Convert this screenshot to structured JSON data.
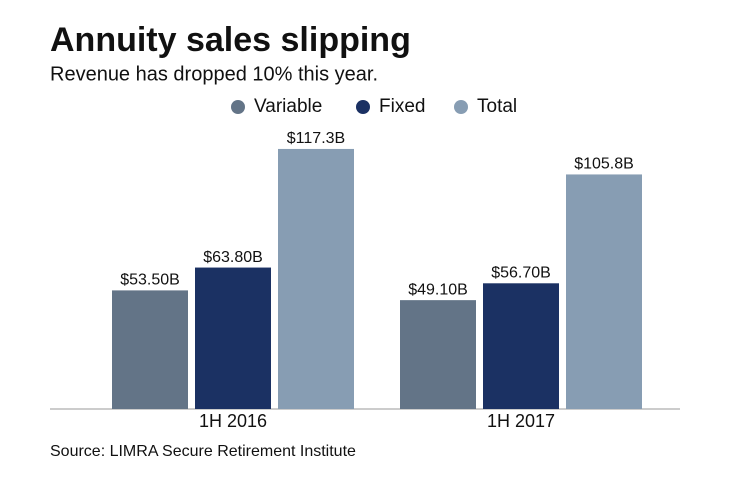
{
  "chart_data": {
    "type": "bar",
    "title": "Annuity sales slipping",
    "subtitle": "Revenue has dropped 10% this year.",
    "categories": [
      "1H 2016",
      "1H 2017"
    ],
    "series": [
      {
        "name": "Variable",
        "color": "#637487",
        "values": [
          53.5,
          49.1
        ],
        "value_labels": [
          "$53.50B",
          "$49.10B"
        ]
      },
      {
        "name": "Fixed",
        "color": "#1b3163",
        "values": [
          63.8,
          56.7
        ],
        "value_labels": [
          "$63.80B",
          "$56.70B"
        ]
      },
      {
        "name": "Total",
        "color": "#879db3",
        "values": [
          117.3,
          105.8
        ],
        "value_labels": [
          "$117.3B",
          "$105.8B"
        ]
      }
    ],
    "source": "Source: LIMRA Secure Retirement Institute"
  }
}
